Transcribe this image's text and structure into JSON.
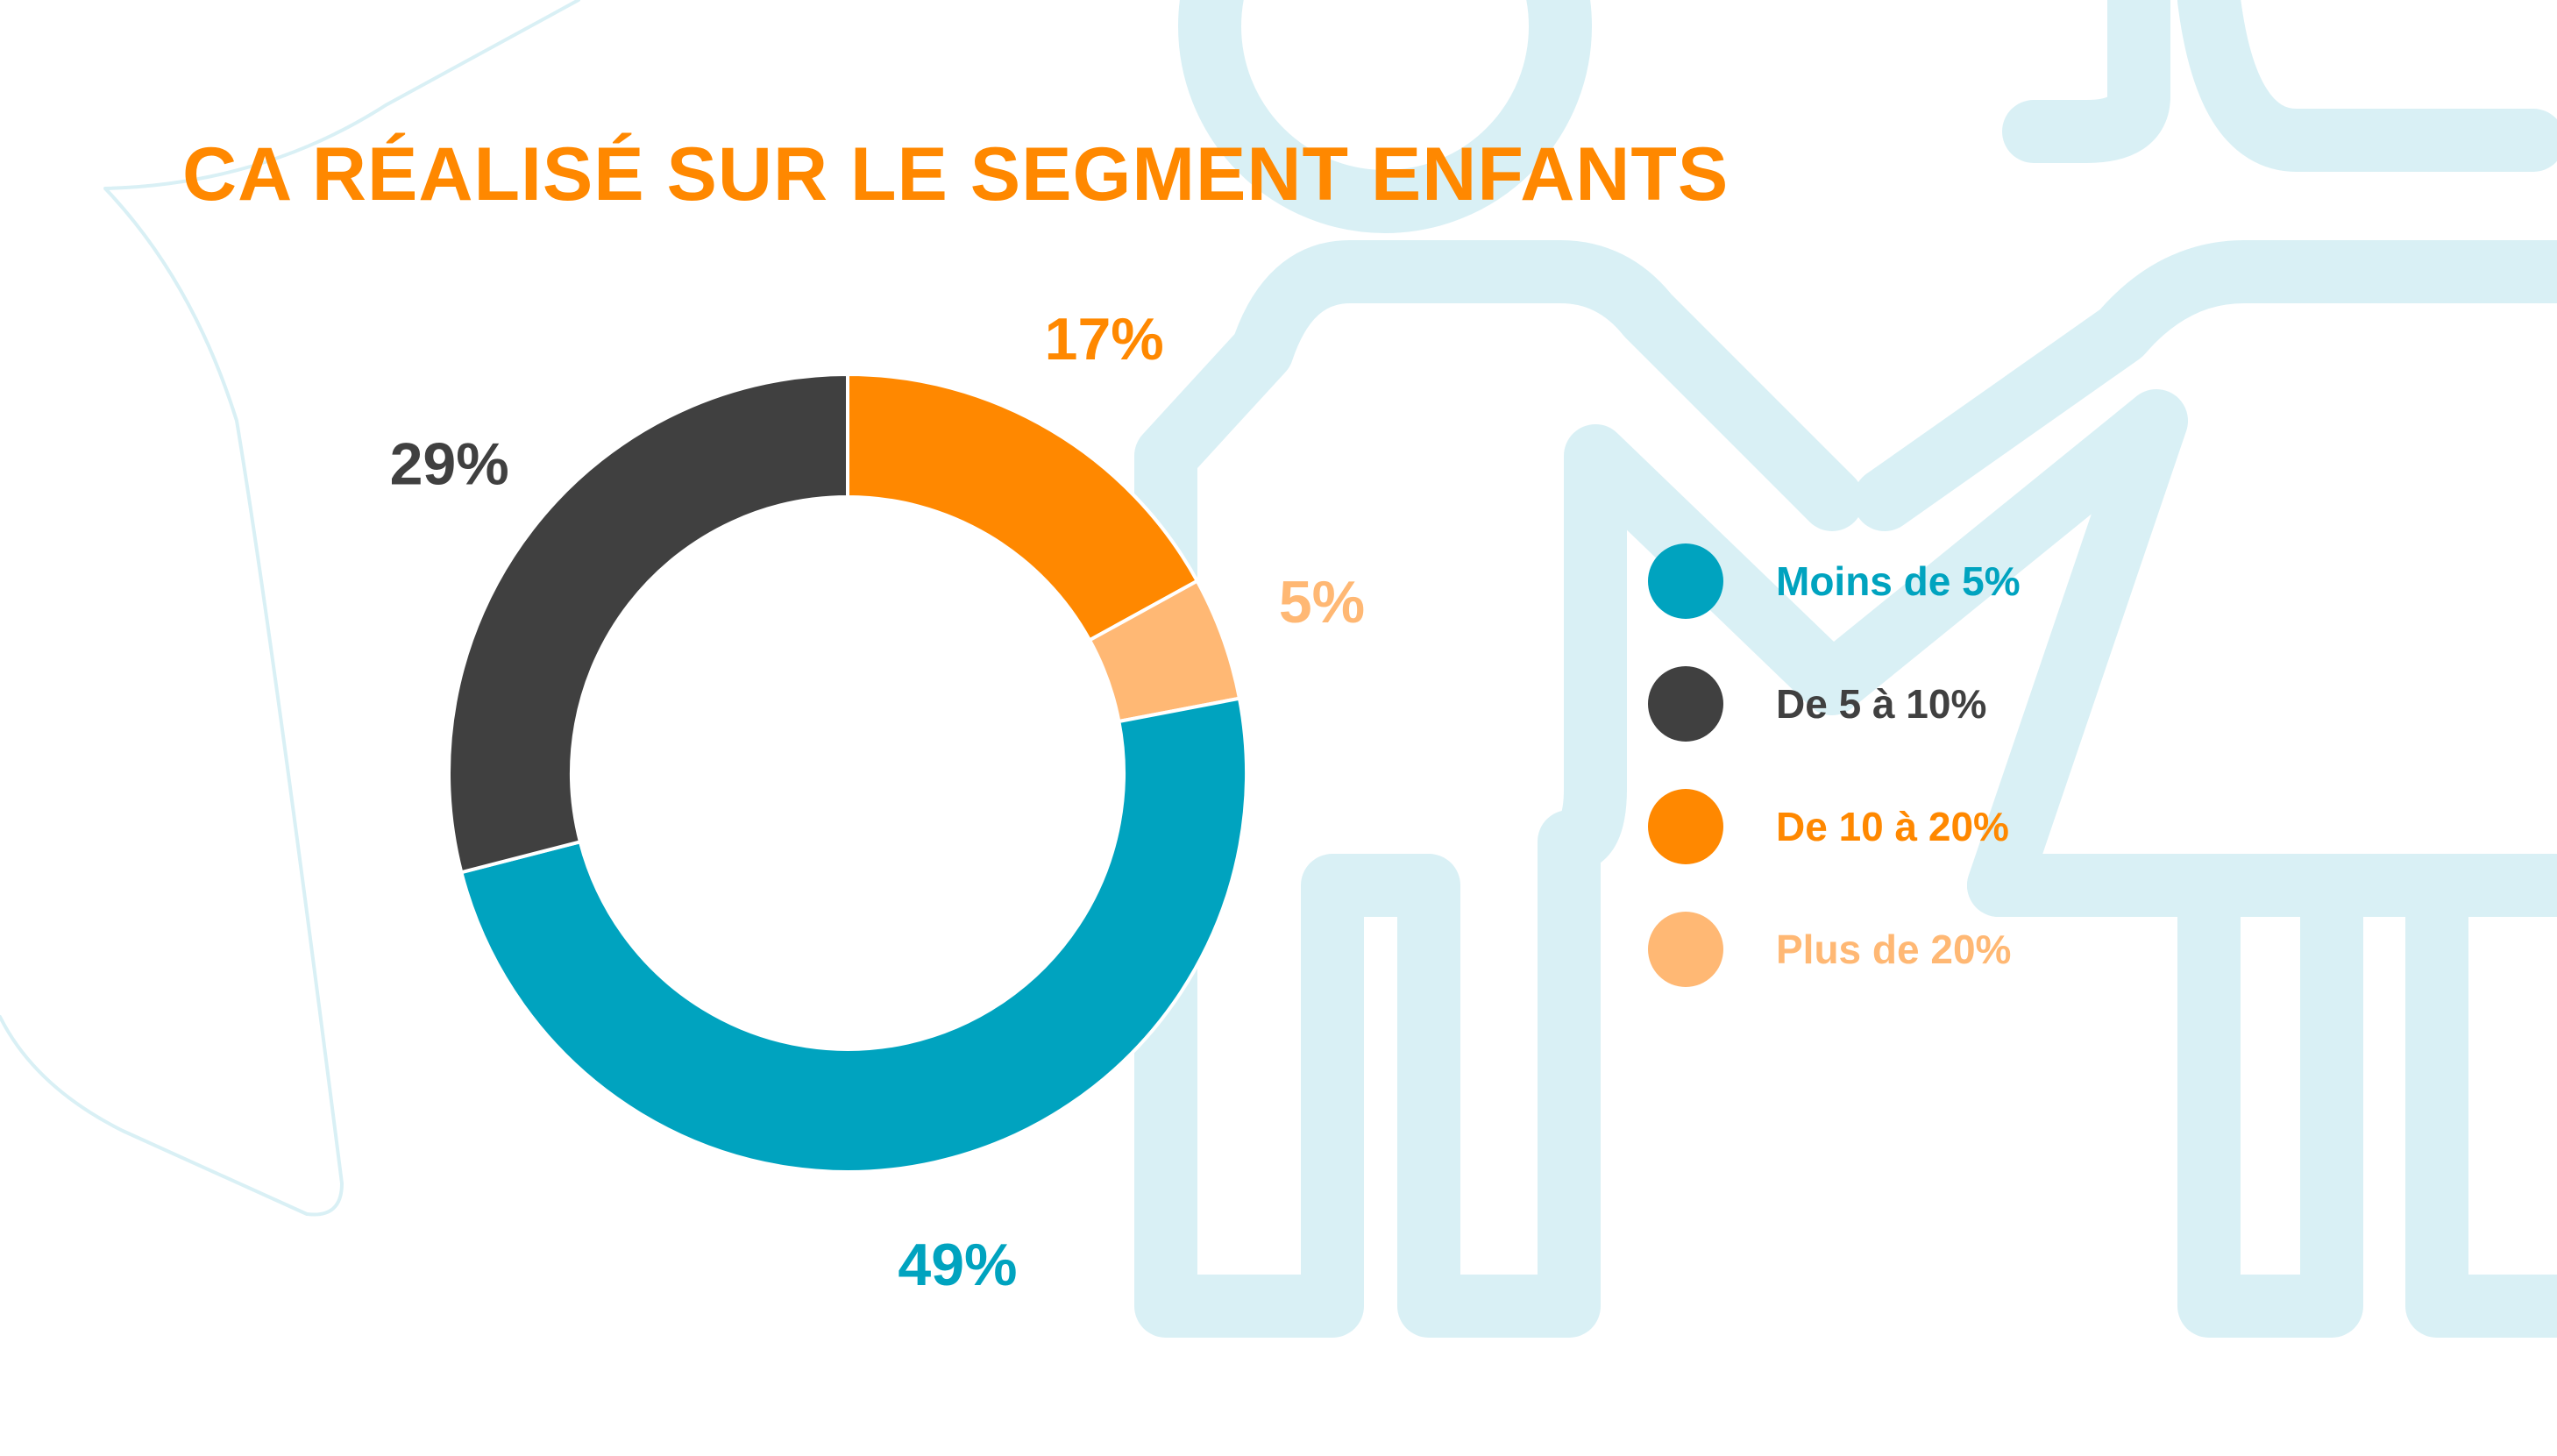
{
  "title": "CA RÉALISÉ SUR LE SEGMENT ENFANTS",
  "colors": {
    "title": "#ff8800",
    "background_figures": "#d9f0f5",
    "moins_de_5": "#00a3bf",
    "de_5_a_10": "#404040",
    "de_10_a_20": "#ff8800",
    "plus_de_20": "#ffb874"
  },
  "chart_data": {
    "type": "pie",
    "style": "donut",
    "title": "CA RÉALISÉ SUR LE SEGMENT ENFANTS",
    "categories": [
      "Moins de 5%",
      "De 5 à 10%",
      "De 10 à 20%",
      "Plus de 20%"
    ],
    "values": [
      49,
      29,
      17,
      5
    ],
    "value_labels": [
      "49%",
      "29%",
      "17%",
      "5%"
    ],
    "colors": [
      "#00a3bf",
      "#404040",
      "#ff8800",
      "#ffb874"
    ],
    "slice_order_clockwise_from_top": [
      "De 10 à 20%",
      "Plus de 20%",
      "Moins de 5%",
      "De 5 à 10%"
    ],
    "legend_position": "right"
  }
}
